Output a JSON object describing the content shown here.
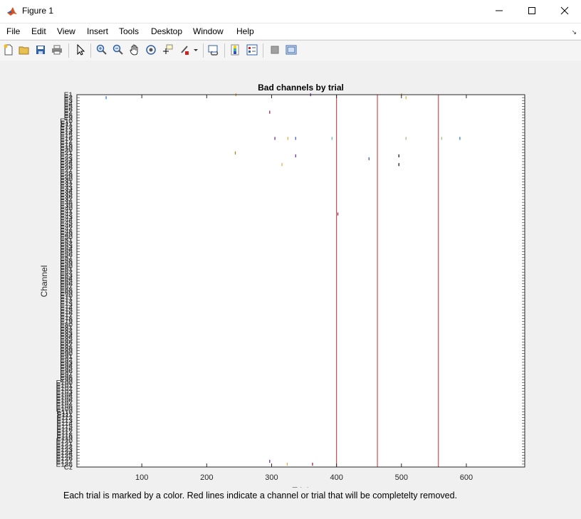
{
  "window": {
    "title": "Figure 1",
    "minimize_icon": "minimize-icon",
    "maximize_icon": "maximize-icon",
    "close_icon": "close-icon"
  },
  "menubar": {
    "items": [
      "File",
      "Edit",
      "View",
      "Insert",
      "Tools",
      "Desktop",
      "Window",
      "Help"
    ]
  },
  "toolbar": {
    "icons": [
      "new-figure-icon",
      "open-file-icon",
      "save-icon",
      "print-icon",
      "select-arrow-icon",
      "zoom-in-icon",
      "zoom-out-icon",
      "pan-hand-icon",
      "rotate-3d-icon",
      "data-cursor-icon",
      "brush-icon",
      "link-plot-icon",
      "colorbar-icon",
      "legend-icon",
      "hide-plot-tools-icon",
      "show-plot-tools-icon"
    ]
  },
  "chart_data": {
    "type": "heatmap",
    "title": "Bad channels by trial",
    "xlabel": "Trial",
    "ylabel": "Channel",
    "xlim": [
      0,
      690
    ],
    "ylim": [
      1,
      129
    ],
    "xticks": [
      100,
      200,
      300,
      400,
      500,
      600
    ],
    "y_tick_labels": [
      "E1",
      "E2",
      "E3",
      "E4",
      "E5",
      "E6",
      "E7",
      "E8",
      "E9",
      "E10",
      "E11",
      "E12",
      "E13",
      "E14",
      "E15",
      "E16",
      "E17",
      "E18",
      "E19",
      "E20",
      "E21",
      "E22",
      "E23",
      "E24",
      "E25",
      "E26",
      "E27",
      "E28",
      "E29",
      "E30",
      "E31",
      "E32",
      "E33",
      "E34",
      "E35",
      "E36",
      "E37",
      "E38",
      "E39",
      "E40",
      "E41",
      "E42",
      "E43",
      "E44",
      "E45",
      "E46",
      "E47",
      "E48",
      "E49",
      "E50",
      "E51",
      "E52",
      "E53",
      "E54",
      "E55",
      "E56",
      "E57",
      "E58",
      "E59",
      "E60",
      "E61",
      "E62",
      "E63",
      "E64",
      "E65",
      "E66",
      "E67",
      "E68",
      "E69",
      "E70",
      "E71",
      "E72",
      "E73",
      "E74",
      "E75",
      "E76",
      "E77",
      "E78",
      "E79",
      "E80",
      "E81",
      "E82",
      "E83",
      "E84",
      "E85",
      "E86",
      "E87",
      "E88",
      "E89",
      "E90",
      "E91",
      "E92",
      "E93",
      "E94",
      "E95",
      "E96",
      "E97",
      "E98",
      "E99",
      "E100",
      "E101",
      "E102",
      "E103",
      "E104",
      "E105",
      "E106",
      "E107",
      "E108",
      "E109",
      "E110",
      "E111",
      "E112",
      "E113",
      "E114",
      "E115",
      "E116",
      "E117",
      "E118",
      "E119",
      "E120",
      "E121",
      "E122",
      "E123",
      "E124",
      "E125",
      "E126",
      "E127",
      "E128",
      "Cz"
    ],
    "removed_trials": [
      400,
      463,
      557
    ],
    "red_line_color": "#d9262b",
    "bad_cells": [
      {
        "trial": 45,
        "channel": 2,
        "color": "#2d7bd4"
      },
      {
        "trial": 245,
        "channel": 1,
        "color": "#e0a030"
      },
      {
        "trial": 360,
        "channel": 1,
        "color": "#7030a0"
      },
      {
        "trial": 500,
        "channel": 1,
        "color": "#e0a030"
      },
      {
        "trial": 507,
        "channel": 2,
        "color": "#e8b040"
      },
      {
        "trial": 297,
        "channel": 7,
        "color": "#a02060"
      },
      {
        "trial": 305,
        "channel": 16,
        "color": "#7030a0"
      },
      {
        "trial": 325,
        "channel": 16,
        "color": "#e8b040"
      },
      {
        "trial": 337,
        "channel": 16,
        "color": "#4060b0"
      },
      {
        "trial": 393,
        "channel": 16,
        "color": "#60c0c0"
      },
      {
        "trial": 507,
        "channel": 16,
        "color": "#a0c080"
      },
      {
        "trial": 562,
        "channel": 16,
        "color": "#a0c080"
      },
      {
        "trial": 590,
        "channel": 16,
        "color": "#2d7bd4"
      },
      {
        "trial": 244,
        "channel": 21,
        "color": "#b08020"
      },
      {
        "trial": 337,
        "channel": 22,
        "color": "#7030a0"
      },
      {
        "trial": 450,
        "channel": 23,
        "color": "#4060b0"
      },
      {
        "trial": 496,
        "channel": 22,
        "color": "#202020"
      },
      {
        "trial": 496,
        "channel": 25,
        "color": "#202020"
      },
      {
        "trial": 316,
        "channel": 25,
        "color": "#e8b040"
      },
      {
        "trial": 402,
        "channel": 42,
        "color": "#a02060"
      },
      {
        "trial": 297,
        "channel": 127,
        "color": "#7030a0"
      },
      {
        "trial": 324,
        "channel": 128,
        "color": "#e8b040"
      },
      {
        "trial": 363,
        "channel": 128,
        "color": "#a02060"
      }
    ]
  },
  "caption": "Each trial is marked by a color. Red lines indicate a channel or trial that will be completelty removed."
}
